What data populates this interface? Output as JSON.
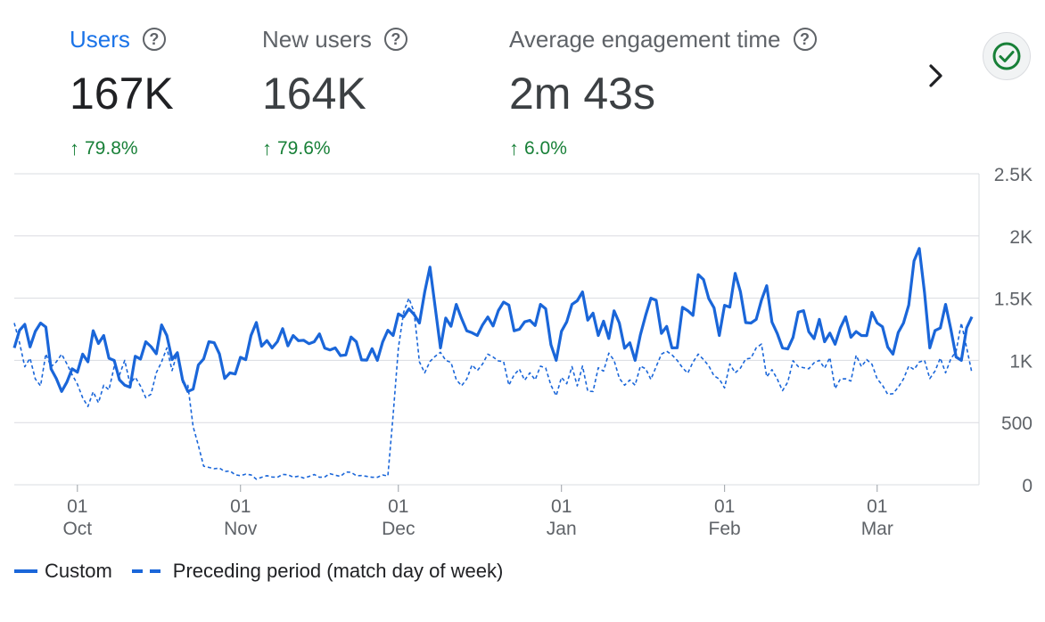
{
  "metrics": [
    {
      "title": "Users",
      "value": "167K",
      "change": "79.8%",
      "active": true
    },
    {
      "title": "New users",
      "value": "164K",
      "change": "79.6%",
      "active": false
    },
    {
      "title": "Average engagement time",
      "value": "2m 43s",
      "change": "6.0%",
      "active": false
    }
  ],
  "icons": {
    "help": "help-circle-icon",
    "trend": "arrow-up-icon",
    "next": "chevron-right-icon",
    "status": "check-circle-icon"
  },
  "colors": {
    "series": "#1a66d9",
    "accent": "#1a73e8",
    "positive": "#188038",
    "grid": "#dadce0"
  },
  "chart_data": {
    "type": "line",
    "x_tick_labels": [
      {
        "day": "01",
        "month": "Oct"
      },
      {
        "day": "01",
        "month": "Nov"
      },
      {
        "day": "01",
        "month": "Dec"
      },
      {
        "day": "01",
        "month": "Jan"
      },
      {
        "day": "01",
        "month": "Feb"
      },
      {
        "day": "01",
        "month": "Mar"
      }
    ],
    "y_ticks": [
      "0",
      "500",
      "1K",
      "1.5K",
      "2K",
      "2.5K"
    ],
    "y_values": [
      0,
      500,
      1000,
      1500,
      2000,
      2500
    ],
    "ylim": [
      0,
      2500
    ],
    "x_range": [
      "2023-09-19",
      "2024-03-19"
    ],
    "grid": true,
    "legend_position": "bottom-left",
    "series": [
      {
        "name": "Custom",
        "style": "solid",
        "keyframes": [
          [
            "2023-09-19",
            1100
          ],
          [
            "2023-09-24",
            1300
          ],
          [
            "2023-09-28",
            750
          ],
          [
            "2023-10-02",
            1050
          ],
          [
            "2023-10-06",
            1200
          ],
          [
            "2023-10-10",
            800
          ],
          [
            "2023-10-14",
            1150
          ],
          [
            "2023-10-18",
            1200
          ],
          [
            "2023-10-22",
            750
          ],
          [
            "2023-10-26",
            1150
          ],
          [
            "2023-10-30",
            900
          ],
          [
            "2023-11-03",
            1200
          ],
          [
            "2023-11-07",
            1100
          ],
          [
            "2023-11-11",
            1200
          ],
          [
            "2023-11-15",
            1150
          ],
          [
            "2023-11-19",
            1100
          ],
          [
            "2023-11-23",
            1150
          ],
          [
            "2023-11-27",
            1000
          ],
          [
            "2023-11-30",
            1200
          ],
          [
            "2023-12-02",
            1350
          ],
          [
            "2023-12-05",
            1300
          ],
          [
            "2023-12-07",
            1750
          ],
          [
            "2023-12-09",
            1100
          ],
          [
            "2023-12-12",
            1450
          ],
          [
            "2023-12-16",
            1200
          ],
          [
            "2023-12-20",
            1400
          ],
          [
            "2023-12-24",
            1250
          ],
          [
            "2023-12-28",
            1450
          ],
          [
            "2023-12-31",
            1000
          ],
          [
            "2024-01-03",
            1450
          ],
          [
            "2024-01-05",
            1550
          ],
          [
            "2024-01-08",
            1200
          ],
          [
            "2024-01-12",
            1300
          ],
          [
            "2024-01-15",
            1000
          ],
          [
            "2024-01-18",
            1500
          ],
          [
            "2024-01-22",
            1100
          ],
          [
            "2024-01-25",
            1400
          ],
          [
            "2024-01-28",
            1650
          ],
          [
            "2024-01-31",
            1200
          ],
          [
            "2024-02-03",
            1700
          ],
          [
            "2024-02-06",
            1300
          ],
          [
            "2024-02-09",
            1600
          ],
          [
            "2024-02-12",
            1100
          ],
          [
            "2024-02-16",
            1400
          ],
          [
            "2024-02-20",
            1150
          ],
          [
            "2024-02-24",
            1350
          ],
          [
            "2024-02-27",
            1200
          ],
          [
            "2024-03-01",
            1300
          ],
          [
            "2024-03-04",
            1050
          ],
          [
            "2024-03-06",
            1300
          ],
          [
            "2024-03-09",
            1900
          ],
          [
            "2024-03-11",
            1100
          ],
          [
            "2024-03-14",
            1450
          ],
          [
            "2024-03-17",
            1000
          ],
          [
            "2024-03-19",
            1350
          ]
        ]
      },
      {
        "name": "Preceding period (match day of week)",
        "style": "dashed",
        "keyframes": [
          [
            "2023-09-19",
            1300
          ],
          [
            "2023-09-23",
            850
          ],
          [
            "2023-09-28",
            1050
          ],
          [
            "2023-10-02",
            700
          ],
          [
            "2023-10-06",
            800
          ],
          [
            "2023-10-10",
            1000
          ],
          [
            "2023-10-14",
            700
          ],
          [
            "2023-10-18",
            1100
          ],
          [
            "2023-10-22",
            800
          ],
          [
            "2023-10-25",
            150
          ],
          [
            "2023-10-31",
            80
          ],
          [
            "2023-11-05",
            60
          ],
          [
            "2023-11-10",
            80
          ],
          [
            "2023-11-16",
            60
          ],
          [
            "2023-11-22",
            100
          ],
          [
            "2023-11-26",
            60
          ],
          [
            "2023-11-29",
            70
          ],
          [
            "2023-12-01",
            1100
          ],
          [
            "2023-12-03",
            1500
          ],
          [
            "2023-12-06",
            900
          ],
          [
            "2023-12-10",
            1000
          ],
          [
            "2023-12-14",
            850
          ],
          [
            "2023-12-18",
            1050
          ],
          [
            "2023-12-22",
            800
          ],
          [
            "2023-12-26",
            900
          ],
          [
            "2023-12-30",
            800
          ],
          [
            "2024-01-03",
            950
          ],
          [
            "2024-01-07",
            750
          ],
          [
            "2024-01-11",
            1000
          ],
          [
            "2024-01-15",
            800
          ],
          [
            "2024-01-19",
            950
          ],
          [
            "2024-01-23",
            1000
          ],
          [
            "2024-01-27",
            1050
          ],
          [
            "2024-01-31",
            850
          ],
          [
            "2024-02-03",
            900
          ],
          [
            "2024-02-07",
            1100
          ],
          [
            "2024-02-11",
            850
          ],
          [
            "2024-02-15",
            950
          ],
          [
            "2024-02-19",
            1000
          ],
          [
            "2024-02-23",
            850
          ],
          [
            "2024-02-27",
            950
          ],
          [
            "2024-03-02",
            800
          ],
          [
            "2024-03-06",
            850
          ],
          [
            "2024-03-10",
            1000
          ],
          [
            "2024-03-14",
            900
          ],
          [
            "2024-03-17",
            1300
          ],
          [
            "2024-03-19",
            900
          ]
        ]
      }
    ]
  }
}
